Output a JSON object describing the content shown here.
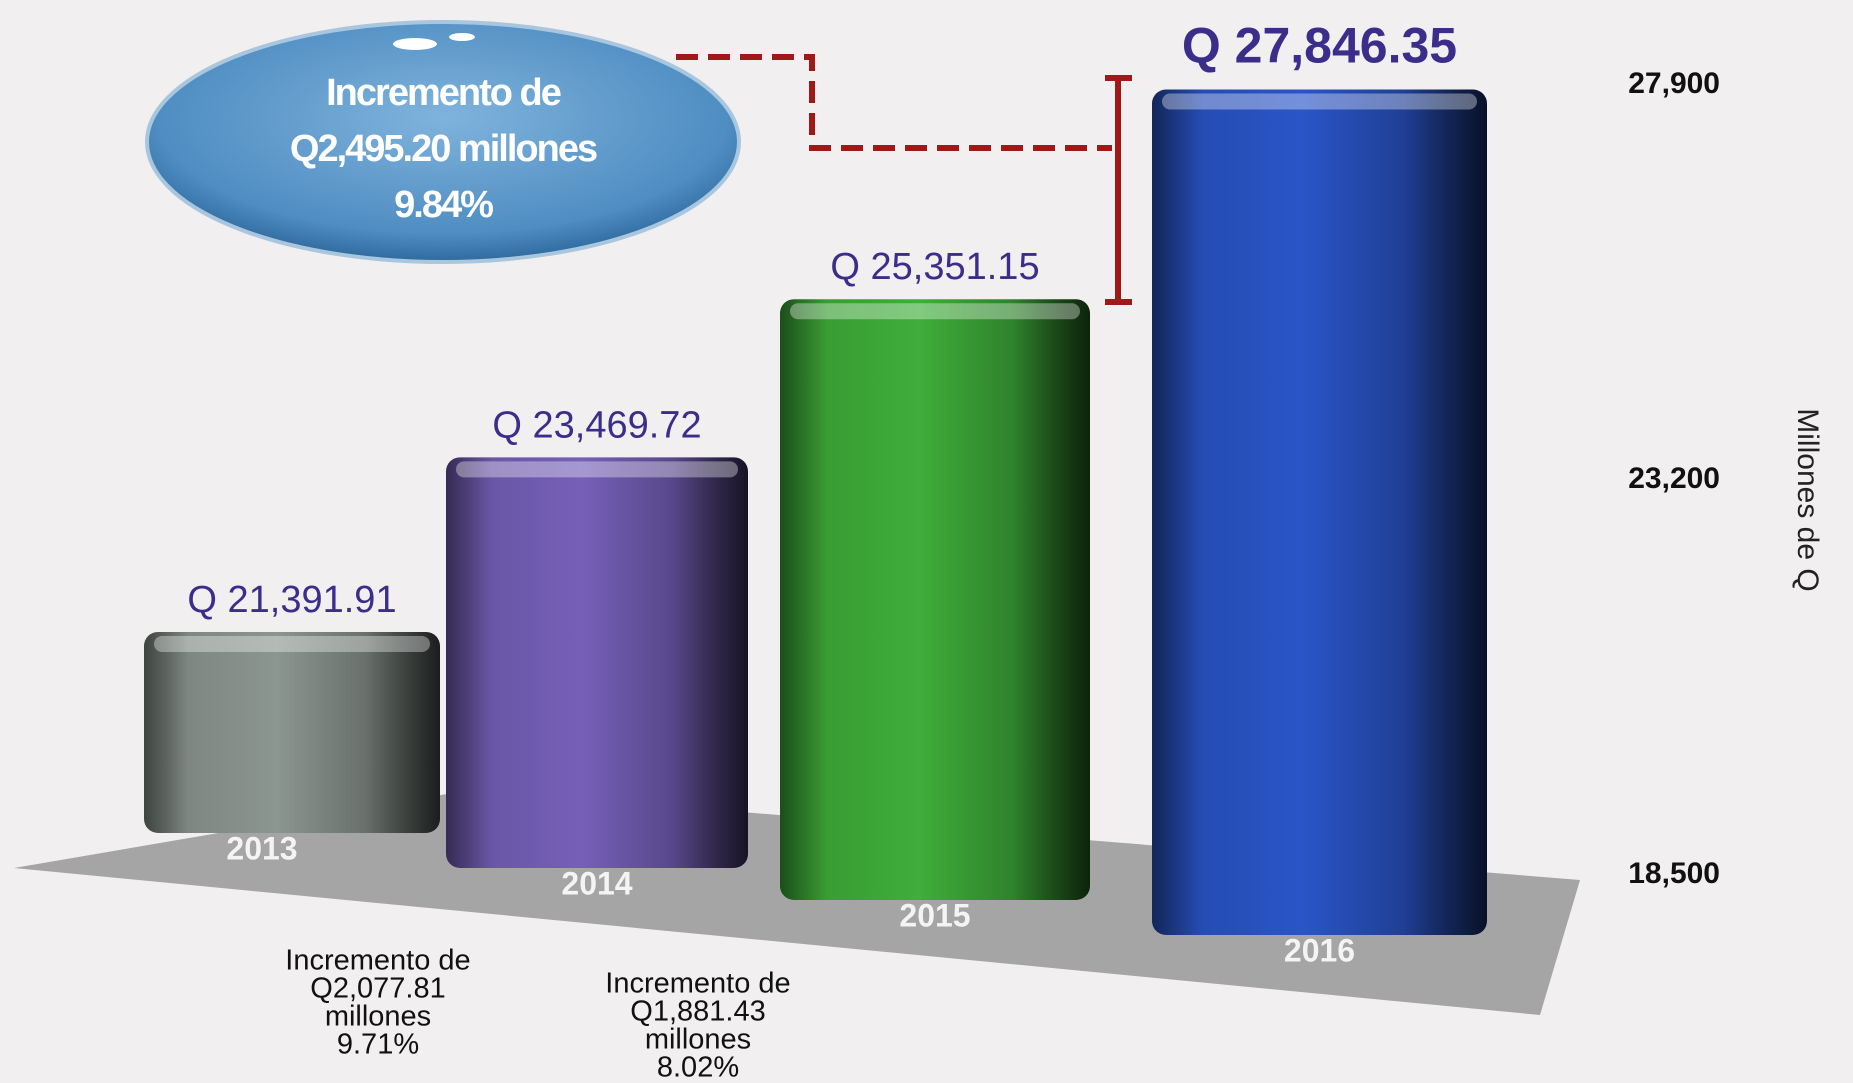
{
  "chart_data": {
    "type": "bar",
    "categories": [
      "2013",
      "2014",
      "2015",
      "2016"
    ],
    "values": [
      21391.91,
      23469.72,
      25351.15,
      27846.35
    ],
    "value_labels": [
      "Q 21,391.91",
      "Q 23,469.72",
      "Q 25,351.15",
      "Q 27,846.35"
    ],
    "colors": [
      "#8c9690",
      "#7560b8",
      "#3fae3a",
      "#2a55c8"
    ],
    "ylim": [
      18500,
      27900
    ],
    "yticks": [
      {
        "value": 18500,
        "label": "18,500"
      },
      {
        "value": 23200,
        "label": "23,200"
      },
      {
        "value": 27900,
        "label": "27,900"
      }
    ],
    "y_axis_label": "Millones de Q",
    "annotations": [
      {
        "lines": [
          "Incremento de",
          "Q2,495.20 millones",
          "9.84%"
        ]
      },
      {
        "lines": [
          "Incremento de",
          "Q2,077.81",
          "millones",
          "9.71%"
        ]
      },
      {
        "lines": [
          "Incremento de",
          "Q1,881.43",
          "millones",
          "8.02%"
        ]
      }
    ]
  }
}
